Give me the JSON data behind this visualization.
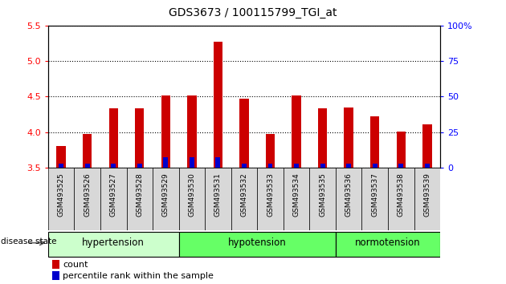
{
  "title": "GDS3673 / 100115799_TGI_at",
  "samples": [
    "GSM493525",
    "GSM493526",
    "GSM493527",
    "GSM493528",
    "GSM493529",
    "GSM493530",
    "GSM493531",
    "GSM493532",
    "GSM493533",
    "GSM493534",
    "GSM493535",
    "GSM493536",
    "GSM493537",
    "GSM493538",
    "GSM493539"
  ],
  "count_values": [
    3.8,
    3.97,
    4.33,
    4.34,
    4.51,
    4.51,
    5.27,
    4.47,
    3.97,
    4.51,
    4.34,
    4.35,
    4.22,
    4.01,
    4.11
  ],
  "percentile_values": [
    3,
    3,
    3,
    3,
    7,
    7,
    7,
    3,
    3,
    3,
    3,
    3,
    3,
    3,
    3
  ],
  "ylim_left": [
    3.5,
    5.5
  ],
  "ylim_right": [
    0,
    100
  ],
  "yticks_left": [
    3.5,
    4.0,
    4.5,
    5.0,
    5.5
  ],
  "yticks_right": [
    0,
    25,
    50,
    75,
    100
  ],
  "ytick_labels_right": [
    "0",
    "25",
    "50",
    "75",
    "100%"
  ],
  "bar_color": "#cc0000",
  "percentile_color": "#0000cc",
  "bar_width": 0.35,
  "pct_bar_width": 0.18,
  "group_defs": [
    {
      "label": "hypertension",
      "start": 0,
      "end": 4
    },
    {
      "label": "hypotension",
      "start": 5,
      "end": 10
    },
    {
      "label": "normotension",
      "start": 11,
      "end": 14
    }
  ],
  "group_colors": [
    "#ccffcc",
    "#66ff66",
    "#66ff66"
  ],
  "group_label": "disease state",
  "legend_count_label": "count",
  "legend_pct_label": "percentile rank within the sample",
  "ybase": 3.5,
  "xlim": [
    -0.5,
    14.5
  ]
}
